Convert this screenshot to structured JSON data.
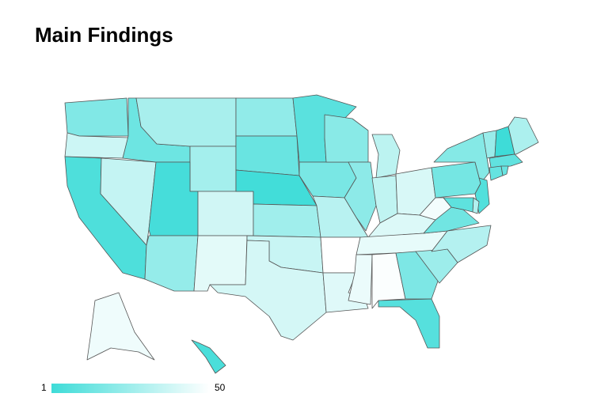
{
  "chart_data": {
    "type": "choropleth",
    "title": "Main Findings",
    "scale_min": 1,
    "scale_max": 50,
    "min_color": "#3edcd8",
    "max_color": "#ffffff",
    "values": [
      18,
      37,
      5,
      35,
      13,
      28,
      27,
      3,
      38,
      23,
      43,
      22,
      12,
      2,
      26,
      36,
      39,
      8,
      16,
      32,
      50,
      42,
      20,
      21,
      33,
      34,
      40,
      41,
      44,
      45,
      49,
      17,
      7,
      25,
      31,
      14,
      47,
      15,
      19,
      24,
      1,
      29,
      10,
      11,
      12,
      6,
      30,
      9,
      46,
      4
    ]
  }
}
